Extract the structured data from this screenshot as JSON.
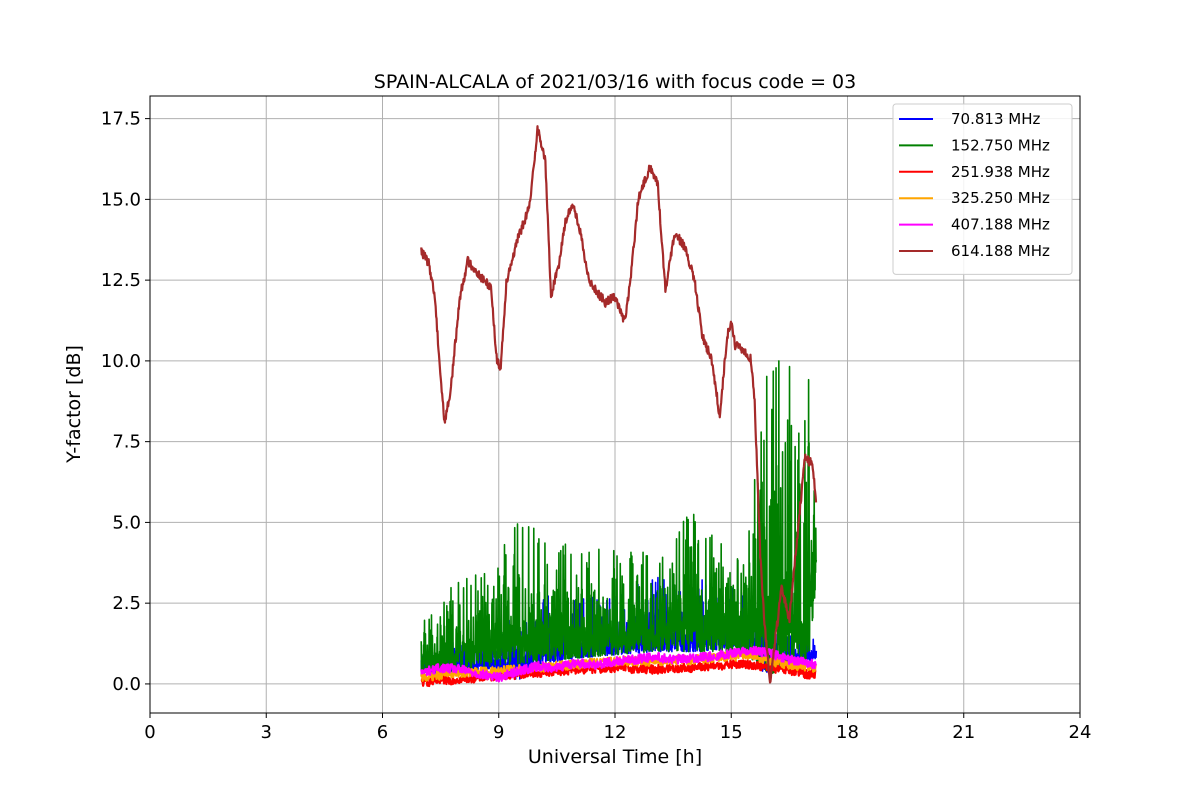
{
  "chart_data": {
    "type": "line",
    "title": "SPAIN-ALCALA of 2021/03/16 with focus code = 03",
    "xlabel": "Universal Time [h]",
    "ylabel": "Y-factor [dB]",
    "xlim": [
      0,
      24
    ],
    "ylim": [
      -0.9,
      18.2
    ],
    "xticks": [
      0,
      3,
      6,
      9,
      12,
      15,
      18,
      21,
      24
    ],
    "xtick_labels": [
      "0",
      "3",
      "6",
      "9",
      "12",
      "15",
      "18",
      "21",
      "24"
    ],
    "yticks": [
      0,
      2.5,
      5,
      7.5,
      10,
      12.5,
      15,
      17.5
    ],
    "ytick_labels": [
      "0.0",
      "2.5",
      "5.0",
      "7.5",
      "10.0",
      "12.5",
      "15.0",
      "17.5"
    ],
    "grid": true,
    "legend_position": "top-right",
    "series": [
      {
        "name": " 70.813 MHz",
        "color": "#0000ff",
        "kind": "noisy",
        "x": [
          7.0,
          8.0,
          9.0,
          9.2,
          9.5,
          10.0,
          10.5,
          11.0,
          12.0,
          13.0,
          14.0,
          15.0,
          15.5,
          15.8,
          16.0,
          16.5,
          17.0,
          17.2
        ],
        "low": [
          0.3,
          0.4,
          0.5,
          0.3,
          0.1,
          0.5,
          0.7,
          0.8,
          0.9,
          1.0,
          1.0,
          1.1,
          1.0,
          0.4,
          0.3,
          0.6,
          0.7,
          0.8
        ],
        "high": [
          1.2,
          1.3,
          1.5,
          2.0,
          2.5,
          3.1,
          2.5,
          2.6,
          2.8,
          3.3,
          3.4,
          3.0,
          2.8,
          2.0,
          1.6,
          1.8,
          1.6,
          1.7
        ]
      },
      {
        "name": "152.750 MHz",
        "color": "#008000",
        "kind": "noisy",
        "x": [
          7.0,
          8.0,
          9.0,
          9.3,
          10.0,
          11.0,
          12.0,
          13.0,
          14.0,
          15.0,
          15.5,
          15.8,
          16.0,
          16.5,
          16.8,
          17.0,
          17.2
        ],
        "low": [
          0.2,
          0.4,
          0.6,
          0.6,
          0.7,
          0.8,
          0.9,
          1.0,
          1.0,
          1.0,
          0.8,
          0.4,
          0.3,
          0.5,
          0.6,
          0.7,
          3.2
        ],
        "high": [
          2.3,
          3.2,
          3.8,
          5.0,
          5.0,
          4.2,
          4.3,
          4.1,
          5.4,
          4.0,
          5.2,
          10.2,
          10.1,
          10.6,
          8.5,
          9.5,
          9.5
        ]
      },
      {
        "name": "251.938 MHz",
        "color": "#ff0000",
        "kind": "smooth",
        "x": [
          7.0,
          8.0,
          9.0,
          10.0,
          11.0,
          12.0,
          13.0,
          14.0,
          15.0,
          15.5,
          16.0,
          16.5,
          17.0,
          17.2
        ],
        "y": [
          0.05,
          0.15,
          0.25,
          0.35,
          0.45,
          0.5,
          0.45,
          0.5,
          0.6,
          0.6,
          0.5,
          0.4,
          0.3,
          0.3
        ]
      },
      {
        "name": "325.250 MHz",
        "color": "#ffa500",
        "kind": "smooth",
        "x": [
          7.0,
          8.0,
          9.0,
          10.0,
          11.0,
          12.0,
          13.0,
          14.0,
          15.0,
          15.5,
          16.0,
          16.5,
          17.0,
          17.2
        ],
        "y": [
          0.2,
          0.35,
          0.4,
          0.5,
          0.6,
          0.7,
          0.7,
          0.75,
          0.85,
          0.9,
          0.7,
          0.6,
          0.5,
          0.5
        ]
      },
      {
        "name": "407.188 MHz",
        "color": "#ff00ff",
        "kind": "smooth",
        "x": [
          7.0,
          7.5,
          8.0,
          8.5,
          9.0,
          9.5,
          10.0,
          10.5,
          11.0,
          11.5,
          12.0,
          12.5,
          13.0,
          13.5,
          14.0,
          14.5,
          15.0,
          15.5,
          16.0,
          16.5,
          17.0,
          17.2
        ],
        "y": [
          0.35,
          0.5,
          0.45,
          0.3,
          0.2,
          0.4,
          0.55,
          0.5,
          0.65,
          0.6,
          0.7,
          0.75,
          0.85,
          0.75,
          0.8,
          0.85,
          0.95,
          1.05,
          0.95,
          0.75,
          0.65,
          0.55
        ]
      },
      {
        "name": "614.188 MHz",
        "color": "#a52a2a",
        "kind": "smooth",
        "x": [
          7.0,
          7.2,
          7.35,
          7.5,
          7.6,
          7.75,
          8.0,
          8.2,
          8.4,
          8.6,
          8.8,
          8.95,
          9.05,
          9.2,
          9.5,
          9.8,
          10.0,
          10.2,
          10.35,
          10.55,
          10.7,
          10.9,
          11.1,
          11.3,
          11.5,
          11.75,
          12.0,
          12.25,
          12.4,
          12.6,
          12.9,
          13.1,
          13.3,
          13.55,
          13.8,
          14.05,
          14.25,
          14.5,
          14.7,
          14.9,
          15.0,
          15.1,
          15.3,
          15.5,
          15.6,
          15.75,
          15.85,
          16.0,
          16.15,
          16.3,
          16.5,
          16.7,
          16.9,
          17.1,
          17.2
        ],
        "y": [
          13.4,
          13.0,
          12.0,
          9.5,
          8.1,
          9.0,
          12.0,
          13.1,
          12.8,
          12.5,
          12.3,
          10.0,
          9.8,
          12.5,
          13.8,
          14.8,
          17.2,
          16.2,
          12.0,
          13.0,
          14.2,
          14.9,
          14.0,
          12.6,
          12.2,
          11.8,
          12.0,
          11.2,
          12.5,
          15.0,
          16.0,
          15.5,
          12.2,
          14.0,
          13.5,
          12.5,
          10.8,
          10.0,
          8.3,
          10.8,
          11.2,
          10.5,
          10.3,
          10.1,
          8.8,
          4.0,
          2.0,
          0.0,
          1.5,
          3.0,
          2.0,
          4.5,
          7.0,
          6.8,
          5.5
        ]
      }
    ]
  }
}
